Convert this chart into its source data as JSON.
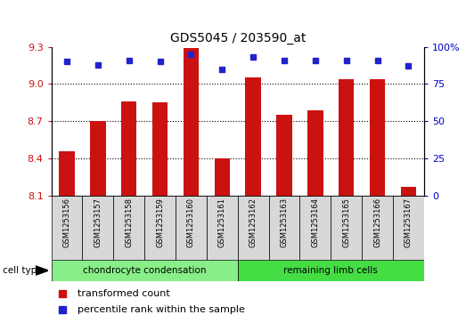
{
  "title": "GDS5045 / 203590_at",
  "samples": [
    "GSM1253156",
    "GSM1253157",
    "GSM1253158",
    "GSM1253159",
    "GSM1253160",
    "GSM1253161",
    "GSM1253162",
    "GSM1253163",
    "GSM1253164",
    "GSM1253165",
    "GSM1253166",
    "GSM1253167"
  ],
  "transformed_count": [
    8.46,
    8.7,
    8.86,
    8.85,
    9.29,
    8.4,
    9.05,
    8.75,
    8.79,
    9.04,
    9.04,
    8.17
  ],
  "percentile_rank": [
    90,
    88,
    91,
    90,
    95,
    85,
    93,
    91,
    91,
    91,
    91,
    87
  ],
  "ylim_left": [
    8.1,
    9.3
  ],
  "ylim_right": [
    0,
    100
  ],
  "yticks_left": [
    8.1,
    8.4,
    8.7,
    9.0,
    9.3
  ],
  "yticks_right": [
    0,
    25,
    50,
    75,
    100
  ],
  "grid_values": [
    9.0,
    8.7,
    8.4
  ],
  "bar_color": "#cc1111",
  "dot_color": "#2222cc",
  "group1_label": "chondrocyte condensation",
  "group1_count": 6,
  "group2_label": "remaining limb cells",
  "group2_count": 6,
  "cell_type_label": "cell type",
  "group1_color": "#88ee88",
  "group2_color": "#44dd44",
  "legend_bar_label": "transformed count",
  "legend_dot_label": "percentile rank within the sample",
  "bar_width": 0.5,
  "tick_label_color_left": "#cc1111",
  "tick_label_color_right": "#0000cc",
  "bg_color": "#d8d8d8"
}
